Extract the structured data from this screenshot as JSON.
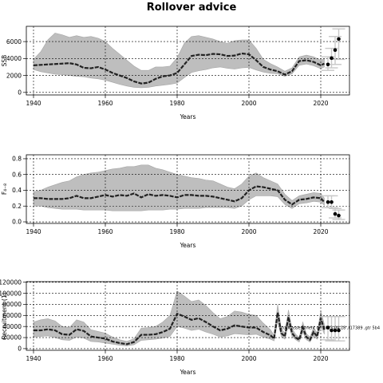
{
  "page": {
    "title": "Rollover advice"
  },
  "colors": {
    "band": "#bebebe",
    "band_edge": "#a6a6a6",
    "line": "#222222",
    "grid": "#000000",
    "forecast_bar": "#c8c8c8",
    "point": "#000000"
  },
  "chart_data": [
    {
      "type": "line",
      "panel": "ssb",
      "ylabel": "SSB",
      "xlabel": "Years",
      "xlim": [
        1938,
        2028
      ],
      "ylim": [
        -300,
        7800
      ],
      "xticks": [
        1940,
        1960,
        1980,
        2000,
        2020
      ],
      "yticks": [
        0,
        2000,
        4000,
        6000
      ],
      "grid": true,
      "x": [
        1940,
        1942,
        1944,
        1946,
        1948,
        1950,
        1952,
        1954,
        1956,
        1958,
        1960,
        1962,
        1964,
        1966,
        1968,
        1970,
        1972,
        1974,
        1976,
        1978,
        1980,
        1982,
        1984,
        1986,
        1988,
        1990,
        1992,
        1994,
        1996,
        1998,
        2000,
        2002,
        2004,
        2006,
        2008,
        2010,
        2012,
        2014,
        2016,
        2018,
        2020,
        2021
      ],
      "median": [
        3200,
        3250,
        3300,
        3350,
        3400,
        3450,
        3300,
        2900,
        2850,
        3000,
        2700,
        2300,
        2000,
        1700,
        1300,
        1050,
        1150,
        1600,
        1900,
        2000,
        2300,
        3300,
        4300,
        4450,
        4400,
        4550,
        4500,
        4300,
        4350,
        4600,
        4500,
        3800,
        3000,
        2700,
        2500,
        2100,
        2500,
        3700,
        3800,
        3600,
        3200,
        3400
      ],
      "lower": [
        2700,
        2450,
        2300,
        2150,
        2100,
        2000,
        1900,
        1850,
        1700,
        1600,
        1450,
        1200,
        950,
        750,
        600,
        550,
        600,
        750,
        850,
        950,
        1100,
        1750,
        2350,
        2550,
        2700,
        2900,
        3000,
        2850,
        2750,
        2900,
        2950,
        2650,
        2400,
        2250,
        2200,
        1900,
        2200,
        3200,
        3350,
        3150,
        2800,
        3000
      ],
      "upper": [
        3900,
        4800,
        6200,
        7000,
        6800,
        6500,
        6700,
        6500,
        6600,
        6400,
        6000,
        5200,
        4500,
        3800,
        3100,
        2600,
        2600,
        3000,
        3000,
        3100,
        4100,
        5800,
        6600,
        6700,
        6500,
        6300,
        6000,
        5800,
        6100,
        6200,
        6200,
        5200,
        3900,
        3400,
        3000,
        2500,
        2900,
        4200,
        4400,
        4200,
        3800,
        4000
      ],
      "forecast": {
        "x": [
          2022,
          2023,
          2024,
          2025
        ],
        "y": [
          3300,
          4050,
          5000,
          6300
        ],
        "lower": [
          2600,
          2900,
          3300,
          3900
        ],
        "upper": [
          4200,
          5200,
          6600,
          7500
        ]
      }
    },
    {
      "type": "line",
      "panel": "fishing_mortality",
      "ylabel": "F₄₋₈",
      "xlabel": "Years",
      "xlim": [
        1938,
        2028
      ],
      "ylim": [
        -0.02,
        0.85
      ],
      "xticks": [
        1940,
        1960,
        1980,
        2000,
        2020
      ],
      "yticks": [
        0.0,
        0.2,
        0.4,
        0.6,
        0.8
      ],
      "yticklabels": [
        "0.0",
        "0.2",
        "0.4",
        "0.6",
        "0.8"
      ],
      "grid": true,
      "x": [
        1940,
        1942,
        1944,
        1946,
        1948,
        1950,
        1952,
        1954,
        1956,
        1958,
        1960,
        1962,
        1964,
        1966,
        1968,
        1970,
        1972,
        1974,
        1976,
        1978,
        1980,
        1982,
        1984,
        1986,
        1988,
        1990,
        1992,
        1994,
        1996,
        1998,
        2000,
        2002,
        2004,
        2006,
        2008,
        2010,
        2012,
        2014,
        2016,
        2018,
        2020,
        2021
      ],
      "median": [
        0.3,
        0.3,
        0.29,
        0.29,
        0.29,
        0.3,
        0.33,
        0.3,
        0.3,
        0.32,
        0.34,
        0.32,
        0.34,
        0.33,
        0.36,
        0.31,
        0.35,
        0.33,
        0.34,
        0.33,
        0.31,
        0.34,
        0.34,
        0.33,
        0.33,
        0.32,
        0.3,
        0.28,
        0.26,
        0.3,
        0.4,
        0.45,
        0.44,
        0.42,
        0.4,
        0.28,
        0.22,
        0.28,
        0.29,
        0.31,
        0.3,
        0.25
      ],
      "lower": [
        0.2,
        0.2,
        0.18,
        0.17,
        0.16,
        0.16,
        0.16,
        0.15,
        0.15,
        0.15,
        0.15,
        0.14,
        0.14,
        0.14,
        0.14,
        0.14,
        0.15,
        0.15,
        0.15,
        0.16,
        0.16,
        0.17,
        0.17,
        0.17,
        0.18,
        0.18,
        0.18,
        0.18,
        0.17,
        0.2,
        0.28,
        0.33,
        0.33,
        0.33,
        0.32,
        0.22,
        0.17,
        0.23,
        0.24,
        0.26,
        0.25,
        0.21
      ],
      "upper": [
        0.38,
        0.4,
        0.44,
        0.47,
        0.5,
        0.52,
        0.57,
        0.6,
        0.62,
        0.63,
        0.65,
        0.67,
        0.68,
        0.7,
        0.7,
        0.72,
        0.72,
        0.68,
        0.66,
        0.63,
        0.6,
        0.58,
        0.56,
        0.55,
        0.53,
        0.52,
        0.48,
        0.44,
        0.42,
        0.48,
        0.58,
        0.62,
        0.56,
        0.52,
        0.48,
        0.35,
        0.27,
        0.33,
        0.35,
        0.37,
        0.36,
        0.3
      ],
      "forecast": {
        "x": [
          2022,
          2023,
          2024,
          2025
        ],
        "y": [
          0.25,
          0.25,
          0.1,
          0.08
        ],
        "lower": [
          0.18,
          0.18,
          0.05,
          0.03
        ],
        "upper": [
          0.33,
          0.33,
          0.17,
          0.15
        ]
      }
    },
    {
      "type": "line",
      "panel": "recruitment",
      "ylabel": "Recruitment (1)",
      "xlabel": "Years",
      "xlim": [
        1938,
        2028
      ],
      "ylim": [
        -3000,
        121000
      ],
      "xticks": [
        1940,
        1960,
        1980,
        2000,
        2020
      ],
      "yticks": [
        0,
        20000,
        40000,
        60000,
        80000,
        100000,
        120000
      ],
      "grid": true,
      "x": [
        1940,
        1942,
        1944,
        1946,
        1948,
        1950,
        1952,
        1954,
        1956,
        1958,
        1960,
        1962,
        1964,
        1966,
        1968,
        1970,
        1972,
        1974,
        1976,
        1978,
        1980,
        1982,
        1984,
        1986,
        1988,
        1990,
        1992,
        1994,
        1996,
        1998,
        2000,
        2002,
        2004,
        2006,
        2007,
        2008,
        2009,
        2010,
        2011,
        2012,
        2013,
        2014,
        2015,
        2016,
        2017,
        2018,
        2019,
        2020,
        2021
      ],
      "median": [
        33000,
        33000,
        35000,
        33000,
        26000,
        25000,
        35000,
        32000,
        22000,
        20000,
        18000,
        13000,
        10000,
        8000,
        12000,
        25000,
        25000,
        26000,
        30000,
        36000,
        63000,
        58000,
        52000,
        55000,
        48000,
        40000,
        33000,
        36000,
        42000,
        40000,
        38000,
        38000,
        30000,
        24000,
        18000,
        65000,
        28000,
        22000,
        57000,
        28000,
        20000,
        16000,
        38000,
        21000,
        16000,
        30000,
        22000,
        55000,
        34000
      ],
      "lower": [
        21000,
        22000,
        23000,
        20000,
        16000,
        15000,
        21000,
        19000,
        13000,
        12000,
        10000,
        8000,
        6000,
        5000,
        7000,
        15000,
        16000,
        17000,
        19000,
        22000,
        40000,
        37000,
        33000,
        35000,
        30000,
        26000,
        21000,
        23000,
        27000,
        26000,
        25000,
        26000,
        21000,
        17000,
        14000,
        50000,
        22000,
        17000,
        45000,
        22000,
        16000,
        12000,
        30000,
        16000,
        12000,
        23000,
        17000,
        42000,
        26000
      ],
      "upper": [
        48000,
        52000,
        54000,
        50000,
        40000,
        38000,
        52000,
        48000,
        34000,
        31000,
        28000,
        21000,
        16000,
        13000,
        18000,
        37000,
        38000,
        40000,
        48000,
        60000,
        104000,
        95000,
        85000,
        88000,
        78000,
        65000,
        54000,
        58000,
        68000,
        66000,
        62000,
        60000,
        46000,
        34000,
        24000,
        80000,
        36000,
        28000,
        70000,
        36000,
        26000,
        20000,
        48000,
        27000,
        21000,
        38000,
        28000,
        68000,
        44000
      ],
      "forecast": {
        "x": [
          2022,
          2023,
          2024,
          2025
        ],
        "y": [
          38000,
          33000,
          33000,
          33000
        ],
        "lower": [
          16000,
          14000,
          14000,
          14000
        ],
        "upper": [
          58000,
          58000,
          58000,
          58000
        ]
      },
      "annotation": "stock assessment on 2023-04-18 ,r17389 ,gtr 5b4"
    }
  ]
}
